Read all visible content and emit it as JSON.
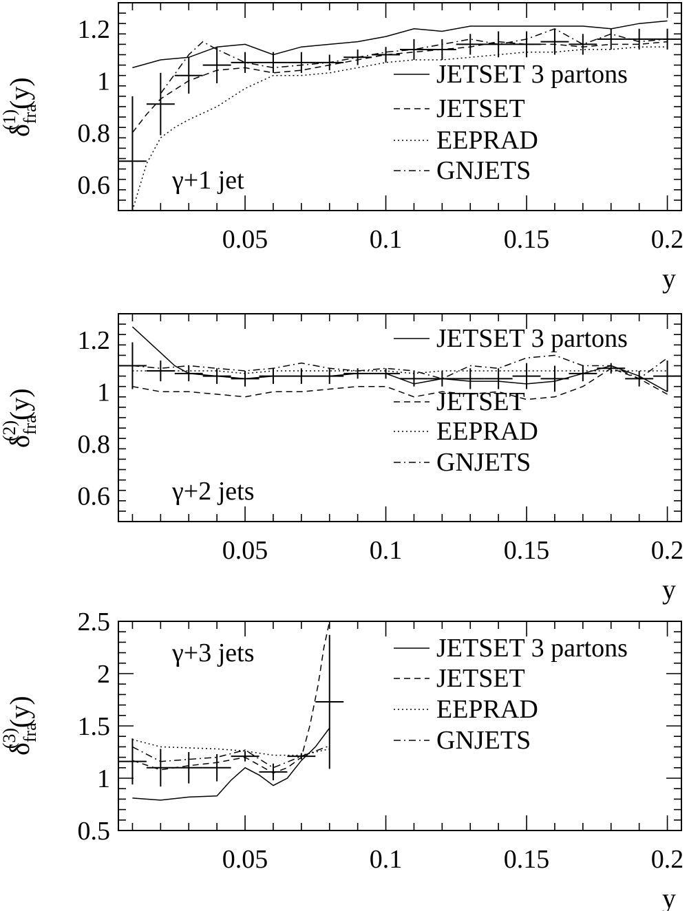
{
  "chart_data": [
    {
      "type": "line",
      "ylabel": {
        "base": "δ",
        "sub": "fra",
        "sup": "(1)",
        "arg": "(y)"
      },
      "xlabel": "y",
      "xlim": [
        0.005,
        0.205
      ],
      "ylim": [
        0.5,
        1.3
      ],
      "xticks": [
        0.05,
        0.1,
        0.15,
        0.2
      ],
      "xtick_labels": [
        "0.05",
        "0.1",
        "0.15",
        "0.2"
      ],
      "yticks": [
        0.6,
        0.8,
        1,
        1.2
      ],
      "ytick_labels": [
        "0.6",
        "0.8",
        "1",
        "1.2"
      ],
      "annotation": "γ+1 jet",
      "legend": [
        "JETSET 3 partons",
        "JETSET",
        "EEPRAD",
        "GNJETS"
      ],
      "legend_styles": [
        "solid",
        "dashed",
        "dotted",
        "dashdot"
      ],
      "points": [
        {
          "x": 0.01,
          "y": 0.69,
          "err": 0.25
        },
        {
          "x": 0.02,
          "y": 0.91,
          "err": 0.12
        },
        {
          "x": 0.03,
          "y": 1.02,
          "err": 0.07
        },
        {
          "x": 0.04,
          "y": 1.06,
          "err": 0.07
        },
        {
          "x": 0.05,
          "y": 1.07,
          "err": 0.04
        },
        {
          "x": 0.06,
          "y": 1.07,
          "err": 0.04
        },
        {
          "x": 0.07,
          "y": 1.07,
          "err": 0.04
        },
        {
          "x": 0.08,
          "y": 1.07,
          "err": 0.03
        },
        {
          "x": 0.09,
          "y": 1.09,
          "err": 0.03
        },
        {
          "x": 0.1,
          "y": 1.1,
          "err": 0.03
        },
        {
          "x": 0.11,
          "y": 1.12,
          "err": 0.04
        },
        {
          "x": 0.12,
          "y": 1.12,
          "err": 0.04
        },
        {
          "x": 0.13,
          "y": 1.14,
          "err": 0.04
        },
        {
          "x": 0.14,
          "y": 1.14,
          "err": 0.05
        },
        {
          "x": 0.15,
          "y": 1.14,
          "err": 0.05
        },
        {
          "x": 0.16,
          "y": 1.15,
          "err": 0.05
        },
        {
          "x": 0.17,
          "y": 1.14,
          "err": 0.04
        },
        {
          "x": 0.18,
          "y": 1.16,
          "err": 0.04
        },
        {
          "x": 0.19,
          "y": 1.16,
          "err": 0.04
        },
        {
          "x": 0.2,
          "y": 1.16,
          "err": 0.04
        }
      ],
      "series": [
        {
          "name": "JETSET 3 partons",
          "style": "solid",
          "x": [
            0.01,
            0.02,
            0.03,
            0.04,
            0.05,
            0.06,
            0.07,
            0.08,
            0.09,
            0.1,
            0.11,
            0.12,
            0.13,
            0.14,
            0.15,
            0.16,
            0.17,
            0.18,
            0.19,
            0.2
          ],
          "y": [
            1.05,
            1.08,
            1.09,
            1.13,
            1.14,
            1.1,
            1.13,
            1.14,
            1.15,
            1.17,
            1.2,
            1.19,
            1.21,
            1.21,
            1.21,
            1.21,
            1.21,
            1.2,
            1.22,
            1.23
          ]
        },
        {
          "name": "JETSET",
          "style": "dashed",
          "x": [
            0.01,
            0.015,
            0.02,
            0.03,
            0.04,
            0.05,
            0.06,
            0.07,
            0.08,
            0.09,
            0.1,
            0.11,
            0.12,
            0.13,
            0.14,
            0.15,
            0.16,
            0.17,
            0.18,
            0.19,
            0.2
          ],
          "y": [
            0.8,
            0.87,
            0.93,
            1.0,
            1.04,
            1.05,
            1.03,
            1.04,
            1.06,
            1.08,
            1.1,
            1.11,
            1.12,
            1.13,
            1.15,
            1.14,
            1.14,
            1.13,
            1.14,
            1.14,
            1.15
          ]
        },
        {
          "name": "EEPRAD",
          "style": "dotted",
          "x": [
            0.01,
            0.015,
            0.02,
            0.025,
            0.03,
            0.04,
            0.05,
            0.06,
            0.07,
            0.08,
            0.09,
            0.1,
            0.11,
            0.12,
            0.13,
            0.14,
            0.15,
            0.16,
            0.17,
            0.18,
            0.19,
            0.2
          ],
          "y": [
            0.5,
            0.68,
            0.78,
            0.82,
            0.85,
            0.9,
            0.97,
            1.02,
            1.02,
            1.03,
            1.05,
            1.07,
            1.08,
            1.08,
            1.09,
            1.1,
            1.11,
            1.11,
            1.12,
            1.12,
            1.13,
            1.13
          ]
        },
        {
          "name": "GNJETS",
          "style": "dashdot",
          "x": [
            0.02,
            0.03,
            0.035,
            0.04,
            0.05,
            0.06,
            0.07,
            0.08,
            0.09,
            0.1,
            0.11,
            0.12,
            0.13,
            0.14,
            0.15,
            0.16,
            0.17,
            0.18,
            0.19,
            0.2
          ],
          "y": [
            0.95,
            1.1,
            1.15,
            1.12,
            1.07,
            1.05,
            1.06,
            1.07,
            1.09,
            1.11,
            1.12,
            1.14,
            1.16,
            1.14,
            1.16,
            1.2,
            1.14,
            1.18,
            1.15,
            1.16
          ]
        }
      ]
    },
    {
      "type": "line",
      "ylabel": {
        "base": "δ",
        "sub": "fra",
        "sup": "(2)",
        "arg": "(y)"
      },
      "xlabel": "y",
      "xlim": [
        0.005,
        0.205
      ],
      "ylim": [
        0.5,
        1.3
      ],
      "xticks": [
        0.05,
        0.1,
        0.15,
        0.2
      ],
      "xtick_labels": [
        "0.05",
        "0.1",
        "0.15",
        "0.2"
      ],
      "yticks": [
        0.6,
        0.8,
        1,
        1.2
      ],
      "ytick_labels": [
        "0.6",
        "0.8",
        "1",
        "1.2"
      ],
      "annotation": "γ+2 jets",
      "legend": [
        "JETSET 3 partons",
        "JETSET",
        "EEPRAD",
        "GNJETS"
      ],
      "legend_styles": [
        "solid",
        "dashed",
        "dotted",
        "dashdot"
      ],
      "points": [
        {
          "x": 0.01,
          "y": 1.1,
          "err": 0.09
        },
        {
          "x": 0.02,
          "y": 1.08,
          "err": 0.04
        },
        {
          "x": 0.03,
          "y": 1.07,
          "err": 0.03
        },
        {
          "x": 0.04,
          "y": 1.06,
          "err": 0.03
        },
        {
          "x": 0.05,
          "y": 1.05,
          "err": 0.03
        },
        {
          "x": 0.06,
          "y": 1.06,
          "err": 0.03
        },
        {
          "x": 0.07,
          "y": 1.06,
          "err": 0.03
        },
        {
          "x": 0.08,
          "y": 1.06,
          "err": 0.03
        },
        {
          "x": 0.09,
          "y": 1.07,
          "err": 0.02
        },
        {
          "x": 0.1,
          "y": 1.07,
          "err": 0.02
        },
        {
          "x": 0.11,
          "y": 1.05,
          "err": 0.03
        },
        {
          "x": 0.12,
          "y": 1.05,
          "err": 0.03
        },
        {
          "x": 0.13,
          "y": 1.05,
          "err": 0.04
        },
        {
          "x": 0.14,
          "y": 1.05,
          "err": 0.04
        },
        {
          "x": 0.15,
          "y": 1.06,
          "err": 0.05
        },
        {
          "x": 0.16,
          "y": 1.05,
          "err": 0.05
        },
        {
          "x": 0.17,
          "y": 1.07,
          "err": 0.03
        },
        {
          "x": 0.18,
          "y": 1.09,
          "err": 0.02
        },
        {
          "x": 0.19,
          "y": 1.05,
          "err": 0.03
        },
        {
          "x": 0.2,
          "y": 1.06,
          "err": 0.06
        }
      ],
      "series": [
        {
          "name": "JETSET 3 partons",
          "style": "solid",
          "x": [
            0.01,
            0.015,
            0.02,
            0.025,
            0.03,
            0.04,
            0.05,
            0.06,
            0.07,
            0.08,
            0.09,
            0.1,
            0.11,
            0.12,
            0.13,
            0.14,
            0.15,
            0.16,
            0.17,
            0.18,
            0.19,
            0.2
          ],
          "y": [
            1.25,
            1.2,
            1.15,
            1.1,
            1.07,
            1.06,
            1.05,
            1.06,
            1.06,
            1.06,
            1.07,
            1.07,
            1.03,
            1.05,
            1.04,
            1.04,
            1.03,
            1.04,
            1.07,
            1.1,
            1.06,
            1.0
          ]
        },
        {
          "name": "JETSET",
          "style": "dashed",
          "x": [
            0.01,
            0.02,
            0.03,
            0.04,
            0.05,
            0.06,
            0.07,
            0.08,
            0.09,
            0.1,
            0.11,
            0.12,
            0.13,
            0.14,
            0.15,
            0.16,
            0.17,
            0.18,
            0.19,
            0.2
          ],
          "y": [
            1.02,
            1.0,
            1.0,
            0.99,
            0.98,
            1.0,
            1.0,
            1.01,
            1.02,
            1.02,
            0.98,
            1.0,
            0.99,
            1.0,
            0.97,
            0.98,
            1.02,
            1.09,
            1.05,
            0.99
          ]
        },
        {
          "name": "EEPRAD",
          "style": "dotted",
          "x": [
            0.01,
            0.02,
            0.03,
            0.04,
            0.05,
            0.06,
            0.07,
            0.08,
            0.09,
            0.1,
            0.11,
            0.12,
            0.13,
            0.14,
            0.15,
            0.16,
            0.17,
            0.18,
            0.19,
            0.2
          ],
          "y": [
            1.08,
            1.08,
            1.08,
            1.08,
            1.07,
            1.08,
            1.08,
            1.08,
            1.08,
            1.08,
            1.07,
            1.08,
            1.08,
            1.08,
            1.08,
            1.08,
            1.08,
            1.08,
            1.08,
            1.08
          ]
        },
        {
          "name": "GNJETS",
          "style": "dashdot",
          "x": [
            0.01,
            0.02,
            0.03,
            0.04,
            0.05,
            0.06,
            0.07,
            0.08,
            0.09,
            0.1,
            0.11,
            0.12,
            0.13,
            0.14,
            0.15,
            0.16,
            0.17,
            0.18,
            0.19,
            0.2
          ],
          "y": [
            1.1,
            1.09,
            1.1,
            1.09,
            1.08,
            1.09,
            1.11,
            1.09,
            1.08,
            1.09,
            1.08,
            1.05,
            1.1,
            1.09,
            1.13,
            1.14,
            1.1,
            1.1,
            1.05,
            1.13
          ]
        }
      ]
    },
    {
      "type": "line",
      "ylabel": {
        "base": "δ",
        "sub": "fra",
        "sup": "(3)",
        "arg": "(y)"
      },
      "xlabel": "y",
      "xlim": [
        0.005,
        0.205
      ],
      "ylim": [
        0.5,
        2.5
      ],
      "xticks": [
        0.05,
        0.1,
        0.15,
        0.2
      ],
      "xtick_labels": [
        "0.05",
        "0.1",
        "0.15",
        "0.2"
      ],
      "yticks": [
        0.5,
        1,
        1.5,
        2,
        2.5
      ],
      "ytick_labels": [
        "0.5",
        "1",
        "1.5",
        "2",
        "2.5"
      ],
      "annotation": "γ+3 jets",
      "legend": [
        "JETSET 3 partons",
        "JETSET",
        "EEPRAD",
        "GNJETS"
      ],
      "legend_styles": [
        "solid",
        "dashed",
        "dotted",
        "dashdot"
      ],
      "points": [
        {
          "x": 0.01,
          "y": 1.16,
          "err": 0.22
        },
        {
          "x": 0.02,
          "y": 1.1,
          "err": 0.18
        },
        {
          "x": 0.03,
          "y": 1.1,
          "err": 0.15
        },
        {
          "x": 0.04,
          "y": 1.1,
          "err": 0.13
        },
        {
          "x": 0.05,
          "y": 1.21,
          "err": 0.05
        },
        {
          "x": 0.06,
          "y": 1.06,
          "err": 0.08
        },
        {
          "x": 0.07,
          "y": 1.21,
          "err": 0.03
        },
        {
          "x": 0.08,
          "y": 1.73,
          "err": 0.64
        }
      ],
      "series": [
        {
          "name": "JETSET 3 partons",
          "style": "solid",
          "x": [
            0.01,
            0.02,
            0.03,
            0.04,
            0.045,
            0.05,
            0.055,
            0.06,
            0.065,
            0.07,
            0.075,
            0.08
          ],
          "y": [
            0.81,
            0.79,
            0.82,
            0.83,
            0.98,
            1.1,
            1.03,
            0.93,
            1.0,
            1.17,
            1.3,
            1.48
          ]
        },
        {
          "name": "JETSET",
          "style": "dashed",
          "x": [
            0.01,
            0.02,
            0.03,
            0.04,
            0.05,
            0.06,
            0.065,
            0.07,
            0.073,
            0.076,
            0.078,
            0.08
          ],
          "y": [
            1.17,
            1.08,
            1.12,
            1.15,
            1.2,
            1.05,
            1.1,
            1.2,
            1.5,
            1.9,
            2.25,
            2.5
          ]
        },
        {
          "name": "EEPRAD",
          "style": "dotted",
          "x": [
            0.01,
            0.02,
            0.03,
            0.04,
            0.05,
            0.06,
            0.07,
            0.08
          ],
          "y": [
            1.37,
            1.3,
            1.29,
            1.28,
            1.26,
            1.22,
            1.22,
            1.28
          ]
        },
        {
          "name": "GNJETS",
          "style": "dashdot",
          "x": [
            0.01,
            0.02,
            0.03,
            0.04,
            0.05,
            0.06,
            0.07,
            0.08
          ],
          "y": [
            1.3,
            1.16,
            1.18,
            1.2,
            1.27,
            1.1,
            1.21,
            1.31
          ]
        }
      ]
    }
  ]
}
